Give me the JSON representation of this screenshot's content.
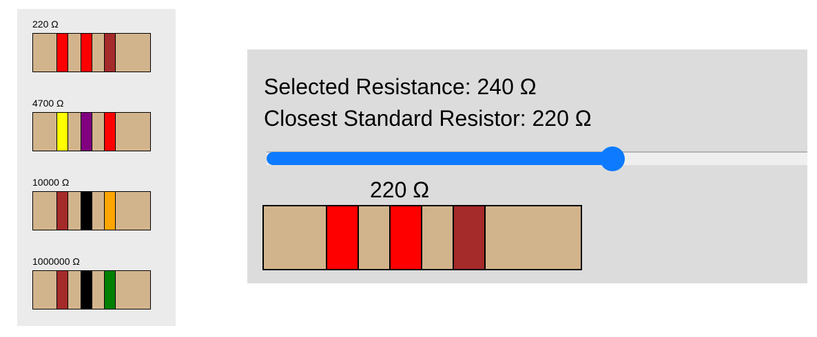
{
  "standard_resistors": [
    {
      "label": "220 Ω",
      "bands": [
        "#ff0000",
        "#ff0000",
        "#a52a2a"
      ]
    },
    {
      "label": "4700 Ω",
      "bands": [
        "#ffff00",
        "#800080",
        "#ff0000"
      ]
    },
    {
      "label": "10000 Ω",
      "bands": [
        "#a52a2a",
        "#000000",
        "#ffa500"
      ]
    },
    {
      "label": "1000000 Ω",
      "bands": [
        "#a52a2a",
        "#000000",
        "#008000"
      ]
    }
  ],
  "selected_resistance_text": "Selected Resistance: 240 Ω",
  "closest_standard_text": "Closest Standard Resistor: 220 Ω",
  "slider": {
    "value_fraction": 0.64,
    "fill_color": "#0d7aff",
    "track_color": "#efefef"
  },
  "closest_resistor": {
    "label": "220 Ω",
    "bands": [
      "#ff0000",
      "#ff0000",
      "#a52a2a"
    ]
  },
  "colors": {
    "resistor_body": "#d2b48c",
    "sidebar_bg": "#ebebeb",
    "panel_bg": "#dcdcdc"
  }
}
